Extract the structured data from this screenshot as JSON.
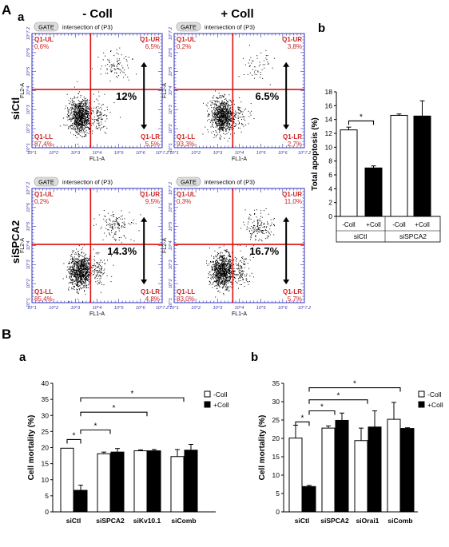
{
  "panel_labels": {
    "A": "A",
    "A_a": "a",
    "A_b": "b",
    "B": "B",
    "B_a": "a",
    "B_b": "b"
  },
  "flow": {
    "col_headers": [
      "- Coll",
      "+ Coll"
    ],
    "row_labels": [
      "siCtl",
      "siSPCA2"
    ],
    "gate_badge": "GATE",
    "gate_text": "intersection of (P3)",
    "xaxis_label": "FL1-A",
    "yaxis_label": "FL2-A",
    "plots": [
      {
        "quad": {
          "UL": "0,6%",
          "UR": "6,5%",
          "LL": "87,4%",
          "LR": "5,5%"
        },
        "total": "12%"
      },
      {
        "quad": {
          "UL": "0,2%",
          "UR": "3,8%",
          "LL": "93,3%",
          "LR": "2,7%"
        },
        "total": "6.5%"
      },
      {
        "quad": {
          "UL": "0,2%",
          "UR": "9,5%",
          "LL": "85,4%",
          "LR": "4,8%"
        },
        "total": "14.3%"
      },
      {
        "quad": {
          "UL": "0,3%",
          "UR": "11,0%",
          "LL": "83,0%",
          "LR": "5,7%"
        },
        "total": "16.7%"
      }
    ],
    "quad_names": {
      "UL": "Q1-UL",
      "UR": "Q1-UR",
      "LL": "Q1-LL",
      "LR": "Q1-LR"
    }
  },
  "chart_data": [
    {
      "type": "bar",
      "ylabel": "Total apoptosis (%)",
      "ylim": [
        0,
        18
      ],
      "yticks": [
        0,
        2,
        4,
        6,
        8,
        10,
        12,
        14,
        16,
        18
      ],
      "groups": [
        "siCtl",
        "siSPCA2"
      ],
      "categories": [
        "-Coll",
        "+Coll",
        "-Coll",
        "+Coll"
      ],
      "values": [
        12.5,
        7.0,
        14.6,
        14.5
      ],
      "errors": [
        0.4,
        0.3,
        0.2,
        2.2
      ],
      "fills": [
        "white",
        "black",
        "white",
        "black"
      ],
      "significance": "*"
    },
    {
      "type": "bar",
      "ylabel": "Cell mortality (%)",
      "ylim": [
        0,
        40
      ],
      "yticks": [
        0,
        5,
        10,
        15,
        20,
        25,
        30,
        35,
        40
      ],
      "categories": [
        "siCtl",
        "siSPCA2",
        "siKv10.1",
        "siComb"
      ],
      "series": [
        {
          "name": "-Coll",
          "values": [
            19.8,
            18.1,
            19.0,
            17.2
          ],
          "errors": [
            0.0,
            0.5,
            0.3,
            2.2
          ]
        },
        {
          "name": "+Coll",
          "values": [
            6.7,
            18.6,
            19.0,
            19.2
          ],
          "errors": [
            1.6,
            1.1,
            0.4,
            1.8
          ]
        }
      ],
      "significance": "*"
    },
    {
      "type": "bar",
      "ylabel": "Cell mortality (%)",
      "ylim": [
        0,
        35
      ],
      "yticks": [
        0,
        5,
        10,
        15,
        20,
        25,
        30,
        35
      ],
      "categories": [
        "siCtl",
        "siSPCA2",
        "siOrai1",
        "siComb"
      ],
      "series": [
        {
          "name": "-Coll",
          "values": [
            20.1,
            22.8,
            19.4,
            25.2
          ],
          "errors": [
            3.5,
            0.6,
            3.4,
            4.6
          ]
        },
        {
          "name": "+Coll",
          "values": [
            6.9,
            24.9,
            23.1,
            22.7
          ],
          "errors": [
            0.3,
            2.0,
            4.4,
            0.2
          ]
        }
      ],
      "significance": "*"
    }
  ],
  "colors": {
    "quad_label": "#cc2222",
    "gate_line": "#dd1111",
    "axis_blue": "#3333bb",
    "bar_black": "#000000"
  }
}
